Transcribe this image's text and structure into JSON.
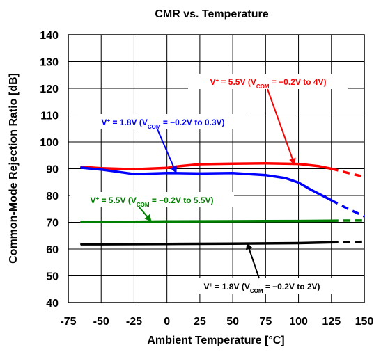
{
  "chart_data": {
    "type": "line",
    "title": "CMR vs. Temperature",
    "xlabel": "Ambient Temperature [°C]",
    "ylabel": "Common-Mode Rejection Ratio [dB]",
    "xlim": [
      -75,
      150
    ],
    "ylim": [
      40,
      140
    ],
    "x_ticks": [
      "-75",
      "-50",
      "-25",
      "0",
      "25",
      "50",
      "75",
      "100",
      "125",
      "150"
    ],
    "y_ticks": [
      "40",
      "50",
      "60",
      "70",
      "80",
      "90",
      "100",
      "110",
      "120",
      "130",
      "140"
    ],
    "grid": true,
    "series": [
      {
        "color": "#ff0000",
        "solid": [
          [
            -65,
            90.7
          ],
          [
            -50,
            90.2
          ],
          [
            -25,
            89.8
          ],
          [
            0,
            90.3
          ],
          [
            10,
            91.0
          ],
          [
            25,
            91.7
          ],
          [
            50,
            91.9
          ],
          [
            75,
            92.0
          ],
          [
            100,
            91.8
          ],
          [
            115,
            91.0
          ],
          [
            125,
            90.0
          ]
        ],
        "dashed": [
          [
            125,
            90.0
          ],
          [
            137,
            88.5
          ],
          [
            150,
            87.0
          ]
        ],
        "annotation": {
          "parts": [
            "V",
            "+",
            " = 5.5V (V",
            "COM",
            " = −0.2V to 4V)"
          ],
          "arrow_to": [
            97,
            91.5
          ]
        }
      },
      {
        "color": "#0000ff",
        "solid": [
          [
            -65,
            90.4
          ],
          [
            -50,
            89.7
          ],
          [
            -25,
            88.0
          ],
          [
            0,
            88.4
          ],
          [
            25,
            88.2
          ],
          [
            50,
            88.4
          ],
          [
            75,
            87.6
          ],
          [
            90,
            86.5
          ],
          [
            100,
            84.8
          ],
          [
            110,
            82.0
          ],
          [
            120,
            79.5
          ],
          [
            125,
            78.2
          ]
        ],
        "dashed": [
          [
            125,
            78.2
          ],
          [
            137,
            75.2
          ],
          [
            150,
            72.2
          ]
        ],
        "annotation": {
          "parts": [
            "V",
            "+",
            " = 1.8V (V",
            "COM",
            " = −0.2V to 0.3V)"
          ],
          "arrow_to": [
            7,
            88.5
          ]
        }
      },
      {
        "color": "#008000",
        "solid": [
          [
            -65,
            70.1
          ],
          [
            -25,
            70.2
          ],
          [
            0,
            70.3
          ],
          [
            50,
            70.4
          ],
          [
            100,
            70.5
          ],
          [
            125,
            70.6
          ]
        ],
        "dashed": [
          [
            125,
            70.6
          ],
          [
            150,
            70.7
          ]
        ],
        "annotation": {
          "parts": [
            "V",
            "+",
            " = 5.5V (V",
            "COM",
            " = −0.2V to 5.5V)"
          ],
          "arrow_to": [
            -12,
            70.4
          ]
        }
      },
      {
        "color": "#000000",
        "solid": [
          [
            -65,
            61.8
          ],
          [
            -50,
            61.8
          ],
          [
            0,
            61.9
          ],
          [
            50,
            62.0
          ],
          [
            100,
            62.2
          ],
          [
            125,
            62.5
          ]
        ],
        "dashed": [
          [
            125,
            62.5
          ],
          [
            150,
            62.7
          ]
        ],
        "annotation": {
          "parts": [
            "V",
            "+",
            " = 1.8V (V",
            "COM",
            " = −0.2V to 2V)"
          ],
          "arrow_to": [
            61,
            62.2
          ]
        }
      }
    ]
  }
}
